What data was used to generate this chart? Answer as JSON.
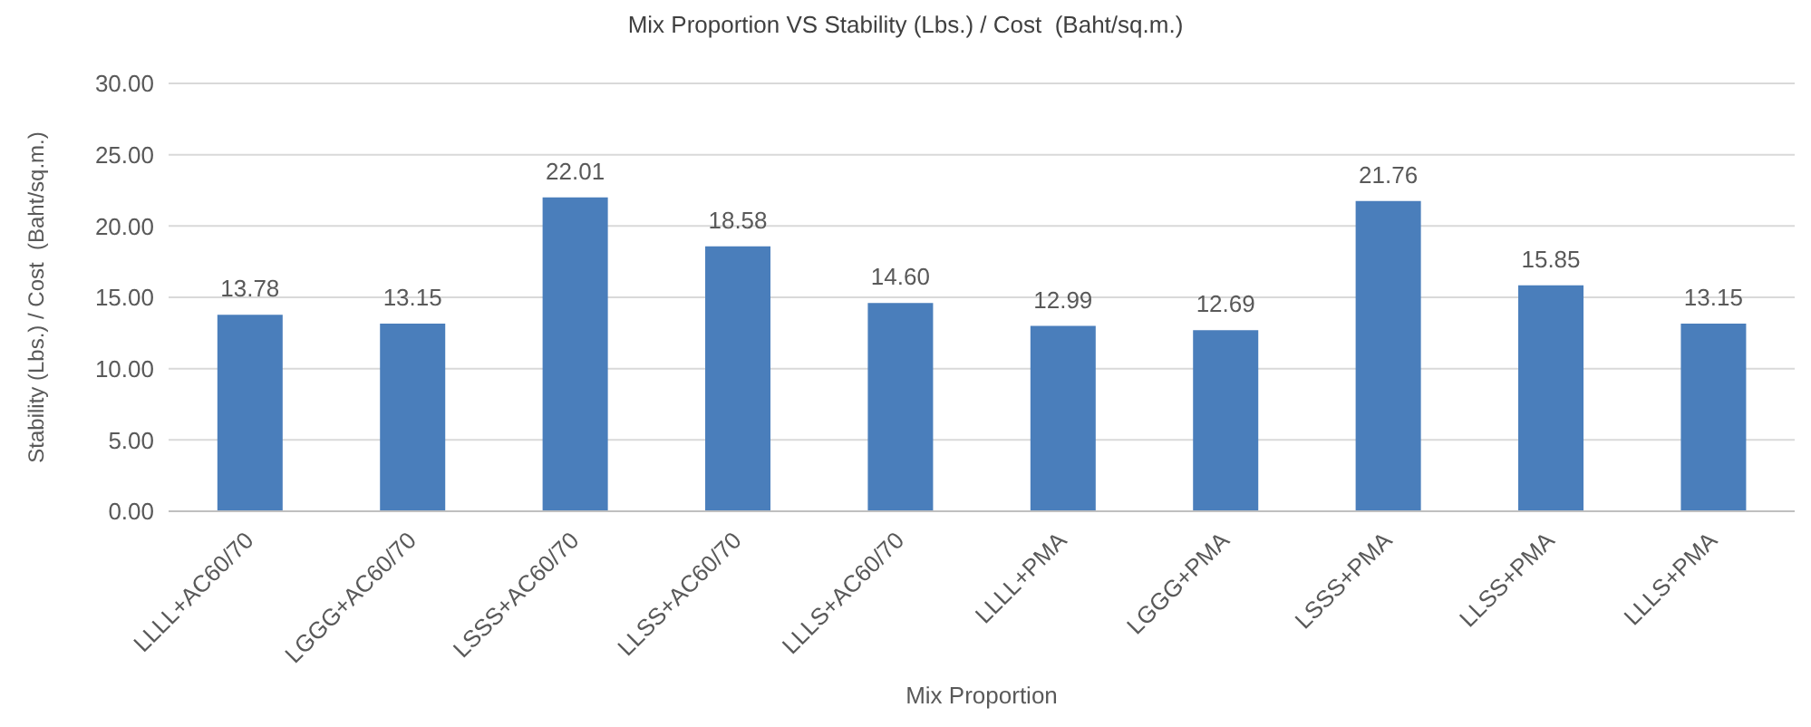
{
  "chart_data": {
    "type": "bar",
    "title": "Mix Proportion VS Stability (Lbs.) / Cost  (Baht/sq.m.)",
    "xlabel": "Mix Proportion",
    "ylabel": "Stability (Lbs.) / Cost  (Baht/sq.m.)",
    "categories": [
      "LLLL+AC60/70",
      "LGGG+AC60/70",
      "LSSS+AC60/70",
      "LLSS+AC60/70",
      "LLLS+AC60/70",
      "LLLL+PMA",
      "LGGG+PMA",
      "LSSS+PMA",
      "LLSS+PMA",
      "LLLS+PMA"
    ],
    "values": [
      13.78,
      13.15,
      22.01,
      18.58,
      14.6,
      12.99,
      12.69,
      21.76,
      15.85,
      13.15
    ],
    "value_labels": [
      "13.78",
      "13.15",
      "22.01",
      "18.58",
      "14.60",
      "12.99",
      "12.69",
      "21.76",
      "15.85",
      "13.15"
    ],
    "color": "#4a7ebb",
    "ylim": [
      0,
      30
    ],
    "yticks": [
      {
        "value": 0,
        "label": "0.00"
      },
      {
        "value": 5,
        "label": "5.00"
      },
      {
        "value": 10,
        "label": "10.00"
      },
      {
        "value": 15,
        "label": "15.00"
      },
      {
        "value": 20,
        "label": "20.00"
      },
      {
        "value": 25,
        "label": "25.00"
      },
      {
        "value": 30,
        "label": "30.00"
      }
    ],
    "grid": "y"
  }
}
